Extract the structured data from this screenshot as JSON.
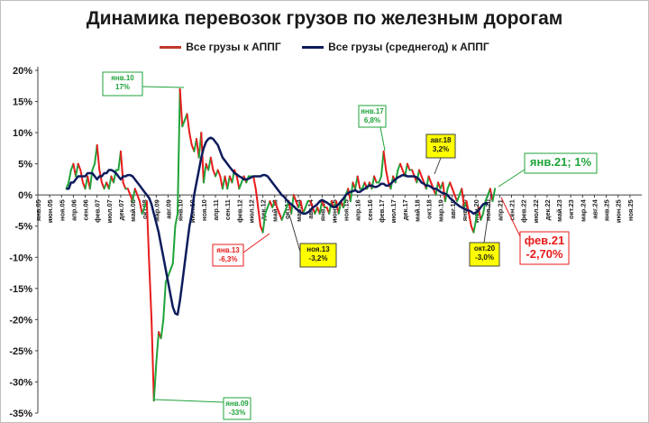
{
  "chart_data": {
    "type": "line",
    "title": "Динамика перевозок грузов по железным дорогам",
    "legend": {
      "placement": "top",
      "entries": [
        "Все грузы к АППГ",
        "Все грузы (среднегод) к АППГ"
      ]
    },
    "colors": {
      "monthly_up": "#1fa33a",
      "monthly_down": "#e81b1b",
      "average": "#0d1b5c",
      "annotation_yellow": "#ffff00"
    },
    "ylim": [
      -35,
      20
    ],
    "ytick_values": [
      20,
      15,
      10,
      5,
      0,
      -5,
      -10,
      -15,
      -20,
      -25,
      -30,
      -35
    ],
    "ytick_labels": [
      "20%",
      "15%",
      "10%",
      "5%",
      "0%",
      "-5%",
      "-10%",
      "-15%",
      "-20%",
      "-25%",
      "-30%",
      "-35%"
    ],
    "xtick_labels": [
      "янв.05",
      "июн.05",
      "ноя.05",
      "апр.06",
      "сен.06",
      "фев.07",
      "июл.07",
      "дек.07",
      "май.08",
      "окт.08",
      "мар.09",
      "авг.09",
      "янв.10",
      "июн.10",
      "ноя.10",
      "апр.11",
      "сен.11",
      "фев.12",
      "июл.12",
      "дек.12",
      "май.13",
      "окт.13",
      "мар.14",
      "авг.14",
      "янв.15",
      "июн.15",
      "ноя.15",
      "апр.16",
      "сен.16",
      "фев.17",
      "июл.17",
      "дек.17",
      "май.18",
      "окт.18",
      "мар.19",
      "авг.19",
      "янв.20",
      "июн.20",
      "ноя.20",
      "апр.21",
      "сен.21",
      "фев.22",
      "июл.22",
      "дек.22",
      "май.23",
      "окт.23",
      "мар.24",
      "авг.24",
      "янв.25",
      "июн.25",
      "ноя.25"
    ],
    "series": [
      {
        "name": "Все грузы к АППГ",
        "start": "янв.06",
        "values": [
          1,
          2,
          4,
          5,
          3,
          5,
          4,
          2,
          1,
          3,
          1,
          4,
          5,
          8,
          4,
          2,
          1,
          2,
          1,
          3,
          2,
          4,
          4,
          7,
          2,
          1,
          1,
          0,
          -1,
          1,
          0,
          -1,
          -3,
          -2,
          -1,
          -11,
          -20,
          -33,
          -27,
          -22,
          -23,
          -20,
          -14,
          -13,
          -12,
          -11,
          -5,
          -3,
          17,
          11,
          12,
          13,
          10,
          8,
          7,
          9,
          6,
          10,
          2,
          5,
          4,
          6,
          4,
          3,
          4,
          3,
          1,
          3,
          1,
          3,
          2,
          4,
          3,
          1,
          2,
          3,
          2,
          3,
          3,
          3,
          1,
          -2,
          -5,
          -6,
          -3,
          -2,
          -1,
          -2,
          -1,
          -2,
          -3,
          -4,
          -3,
          -2,
          -1,
          -3,
          0,
          -1,
          -2,
          -1,
          -3,
          -2,
          -1,
          -1,
          -2,
          -3,
          -2,
          -3,
          -1,
          -2,
          -2,
          -3,
          -1,
          -2,
          -1,
          -3,
          -1,
          -2,
          0,
          1,
          -1,
          2,
          1,
          3,
          1,
          1,
          2,
          1,
          2,
          1,
          3,
          2,
          2,
          3,
          7,
          4,
          2,
          1,
          3,
          2,
          4,
          5,
          4,
          3,
          5,
          4,
          4,
          3,
          2,
          4,
          3,
          2,
          1,
          3,
          2,
          1,
          0,
          2,
          1,
          2,
          -1,
          1,
          2,
          1,
          0,
          -1,
          0,
          1,
          -2,
          -1,
          -3,
          -5,
          -6,
          -4,
          -2,
          -4,
          -3,
          -1,
          0,
          1,
          -1,
          1
        ]
      },
      {
        "name": "Все грузы (среднегод) к АППГ",
        "start": "янв.06",
        "values": [
          1,
          1,
          2,
          2,
          2.5,
          3,
          3,
          3,
          3,
          3.5,
          3.5,
          3.5,
          3,
          2.5,
          3,
          3,
          3.5,
          3.5,
          4,
          4,
          3.8,
          3.5,
          3,
          2.5,
          3,
          3,
          3.2,
          3.2,
          3,
          2.5,
          2,
          1.5,
          1,
          0.5,
          0,
          -0.5,
          -1.5,
          -3,
          -4.5,
          -6,
          -8,
          -10,
          -12,
          -14,
          -16,
          -18,
          -19,
          -19.2,
          -17,
          -14,
          -11,
          -8,
          -5,
          -3,
          0,
          2,
          4,
          6,
          7.5,
          8.5,
          9,
          9.2,
          9,
          8.5,
          8,
          7,
          6,
          5.5,
          5,
          4.5,
          4,
          3.5,
          3.3,
          3,
          2.8,
          2.5,
          2.5,
          2.6,
          2.8,
          3,
          3,
          3,
          3,
          3.2,
          3.2,
          3,
          2.5,
          2,
          1.5,
          1,
          0.5,
          0,
          -0.3,
          -0.8,
          -1.2,
          -1.5,
          -1.8,
          -2.2,
          -2.5,
          -2.8,
          -3,
          -3,
          -2.8,
          -2.5,
          -2,
          -1.8,
          -1.5,
          -1,
          -0.8,
          -1,
          -1.2,
          -1.5,
          -1.8,
          -2,
          -1.8,
          -1.5,
          -1,
          -0.6,
          0,
          0.3,
          0.5,
          0.6,
          0.8,
          0.5,
          0.5,
          0.8,
          1,
          1.3,
          1.5,
          1.5,
          1.3,
          1.3,
          1.5,
          1.8,
          1.8,
          1.5,
          1.5,
          1.8,
          2.2,
          2.5,
          2.8,
          3,
          3.2,
          3.2,
          3,
          3,
          3,
          3,
          2.8,
          2.5,
          2,
          1.8,
          1.5,
          1.5,
          1.3,
          1,
          1,
          0.8,
          0.5,
          0.3,
          0.2,
          0,
          -0.5,
          -0.8,
          -1.2,
          -1.5,
          -1.8,
          -2,
          -2.2,
          -2.4,
          -2.5,
          -2.7,
          -3,
          -2.8,
          -2.5,
          -2,
          -1.5,
          -1.3,
          -1.5
        ]
      }
    ],
    "annotations": [
      {
        "id": "jan10",
        "date": "янв.10",
        "value_label": "17%"
      },
      {
        "id": "jan09",
        "date": "янв.09",
        "value_label": "-33%"
      },
      {
        "id": "jan13",
        "date": "янв.13",
        "value_label": "-6,3%"
      },
      {
        "id": "nov13",
        "date": "ноя.13",
        "value_label": "-3,2%"
      },
      {
        "id": "jan17",
        "date": "янв.17",
        "value_label": "6,8%"
      },
      {
        "id": "aug18",
        "date": "авг.18",
        "value_label": "3,2%"
      },
      {
        "id": "oct20",
        "date": "окт.20",
        "value_label": "-3,0%"
      },
      {
        "id": "feb21",
        "date": "фев.21",
        "value_label": "-2,70%"
      },
      {
        "id": "jan21",
        "text": "янв.21; 1%"
      }
    ],
    "grid": false
  }
}
